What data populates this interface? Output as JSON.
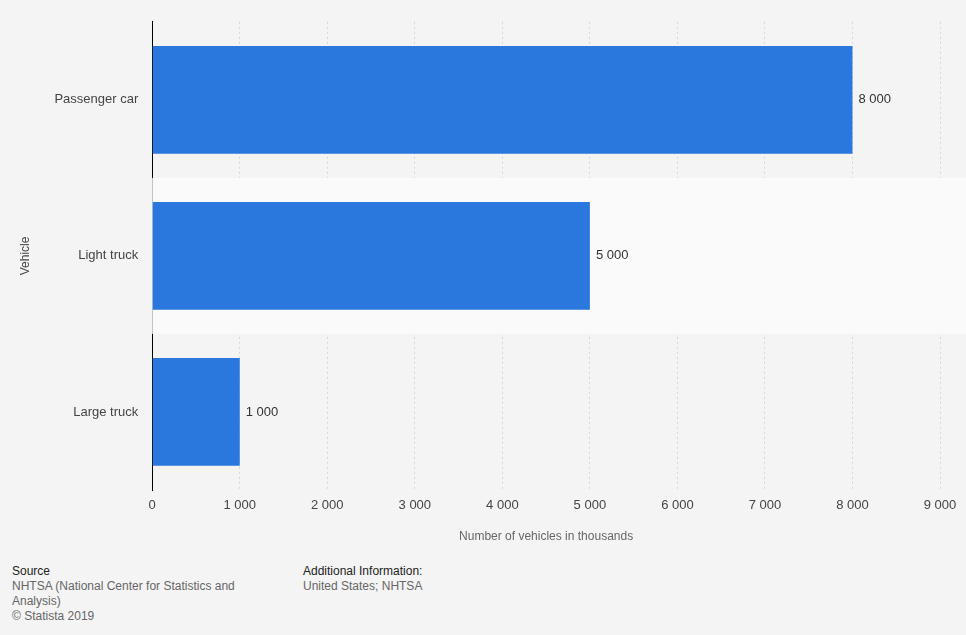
{
  "chart_data": {
    "type": "bar",
    "orientation": "horizontal",
    "categories": [
      "Passenger car",
      "Light truck",
      "Large truck"
    ],
    "values": [
      8000,
      5000,
      1000
    ],
    "value_labels": [
      "8 000",
      "5 000",
      "1 000"
    ],
    "data_labels": true,
    "color": "#2a77dd",
    "xlabel": "Number of vehicles in thousands",
    "ylabel": "Vehicle",
    "xlim": [
      0,
      9000
    ],
    "xticks": [
      0,
      {
        "value": 1000,
        "label": "1 000"
      },
      {
        "value": 2000,
        "label": "2 000"
      },
      {
        "value": 3000,
        "label": "3 000"
      },
      {
        "value": 4000,
        "label": "4 000"
      },
      {
        "value": 5000,
        "label": "5 000"
      },
      {
        "value": 6000,
        "label": "6 000"
      },
      {
        "value": 7000,
        "label": "7 000"
      },
      {
        "value": 8000,
        "label": "8 000"
      },
      {
        "value": 9000,
        "label": "9 000"
      }
    ],
    "grid": true
  },
  "footer": {
    "source_title": "Source",
    "source": "NHTSA (National Center for Statistics and Analysis)",
    "copyright": "© Statista 2019",
    "info_title": "Additional Information:",
    "info": "United States; NHTSA"
  }
}
